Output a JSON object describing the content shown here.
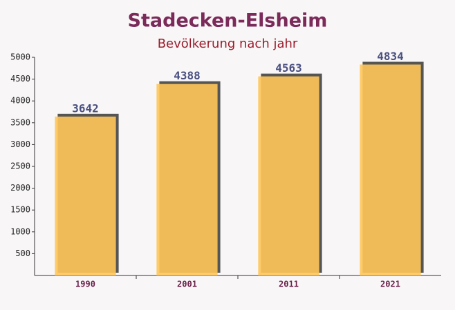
{
  "chart_data": {
    "type": "bar",
    "title": "Stadecken-Elsheim",
    "subtitle": "Bevölkerung nach jahr",
    "categories": [
      "1990",
      "2001",
      "2011",
      "2021"
    ],
    "values": [
      3642,
      4388,
      4563,
      4834
    ],
    "color": "#ffc659",
    "ylim": [
      0,
      5000
    ],
    "yticks": [
      500,
      1000,
      1500,
      2000,
      2500,
      3000,
      3500,
      4000,
      4500,
      5000
    ]
  }
}
